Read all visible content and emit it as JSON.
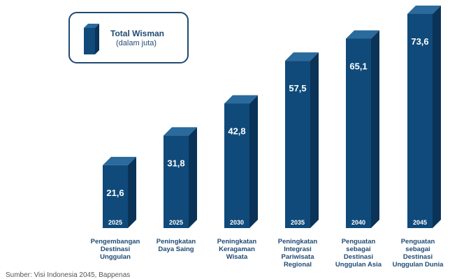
{
  "legend": {
    "title": "Total Wisman",
    "subtitle": "(dalam juta)"
  },
  "source": "Sumber: Visi Indonesia 2045, Bappenas",
  "colors": {
    "front": "#0f4a7a",
    "side": "#0a3357",
    "top": "#2a6a9c",
    "text": "#1f4a72"
  },
  "chart_data": {
    "type": "bar",
    "categories": [
      "Pengembangan\nDestinasi\nUnggulan",
      "Peningkatan\nDaya Saing",
      "Peningkatan\nKeragaman\nWisata",
      "Peningkatan\nIntegrasi\nPariwisata\nRegional",
      "Penguatan\nsebagai\nDestinasi\nUnggulan Asia",
      "Penguatan\nsebagai\nDestinasi\nUnggulan Dunia"
    ],
    "years": [
      "2025",
      "2025",
      "2030",
      "2035",
      "2040",
      "2045"
    ],
    "series": [
      {
        "name": "Total Wisman",
        "values": [
          21.6,
          31.8,
          42.8,
          57.5,
          65.1,
          73.6
        ],
        "labels": [
          "21,6",
          "31,8",
          "42,8",
          "57,5",
          "65,1",
          "73,6"
        ]
      }
    ],
    "ylim": [
      0,
      73.6
    ],
    "grid": false,
    "legend_position": "top-left"
  }
}
